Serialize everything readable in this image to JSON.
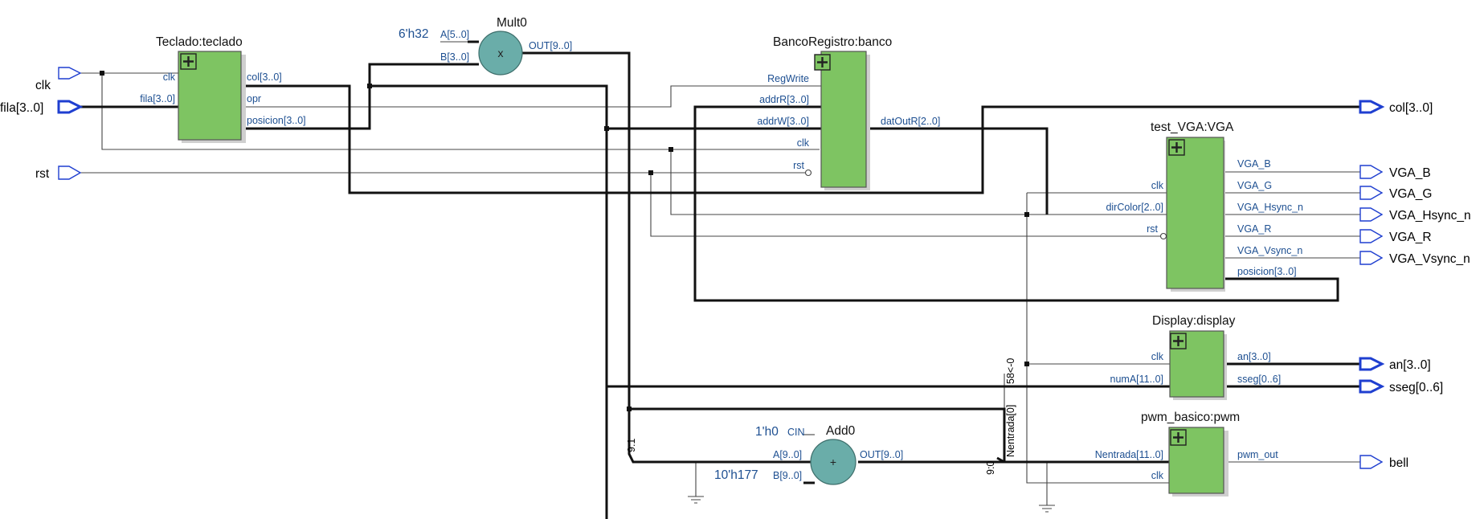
{
  "diagram": {
    "blocks": {
      "teclado": {
        "title": "Teclado:teclado",
        "in": [
          "clk",
          "fila[3..0]"
        ],
        "out": [
          "col[3..0]",
          "opr",
          "posicion[3..0]"
        ]
      },
      "mult": {
        "title": "Mult0",
        "symbol": "x",
        "const_a": "6'h32",
        "in": [
          "A[5..0]",
          "B[3..0]"
        ],
        "out": [
          "OUT[9..0]"
        ]
      },
      "banco": {
        "title": "BancoRegistro:banco",
        "in": [
          "RegWrite",
          "addrR[3..0]",
          "addrW[3..0]",
          "clk",
          "rst"
        ],
        "out": [
          "datOutR[2..0]"
        ]
      },
      "vga": {
        "title": "test_VGA:VGA",
        "in": [
          "clk",
          "dirColor[2..0]",
          "rst"
        ],
        "out": [
          "VGA_B",
          "VGA_G",
          "VGA_Hsync_n",
          "VGA_R",
          "VGA_Vsync_n",
          "posicion[3..0]"
        ]
      },
      "display": {
        "title": "Display:display",
        "in": [
          "clk",
          "numA[11..0]"
        ],
        "out": [
          "an[3..0]",
          "sseg[0..6]"
        ]
      },
      "pwm": {
        "title": "pwm_basico:pwm",
        "in": [
          "Nentrada[11..0]",
          "clk"
        ],
        "out": [
          "pwm_out"
        ]
      },
      "add": {
        "title": "Add0",
        "symbol": "+",
        "const_cin": "1'h0",
        "const_b": "10'h177",
        "cin": "CIN",
        "in": [
          "A[9..0]",
          "B[9..0]"
        ],
        "out": [
          "OUT[9..0]"
        ]
      }
    },
    "inputs": [
      "clk",
      "fila[3..0]",
      "rst"
    ],
    "outputs": [
      "col[3..0]",
      "VGA_B",
      "VGA_G",
      "VGA_Hsync_n",
      "VGA_R",
      "VGA_Vsync_n",
      "an[3..0]",
      "sseg[0..6]",
      "bell"
    ],
    "net_labels": {
      "bus_slice_1": "9:1",
      "bus_slice_2": "9:0",
      "nentrada_tap": "Nentrada[0]",
      "shift": "58<-0"
    },
    "block_fill_color": "#7ec462",
    "operator_fill_color": "#6aada9",
    "pin_color": "#1f3fd0",
    "port_label_color": "#1d4f91"
  }
}
